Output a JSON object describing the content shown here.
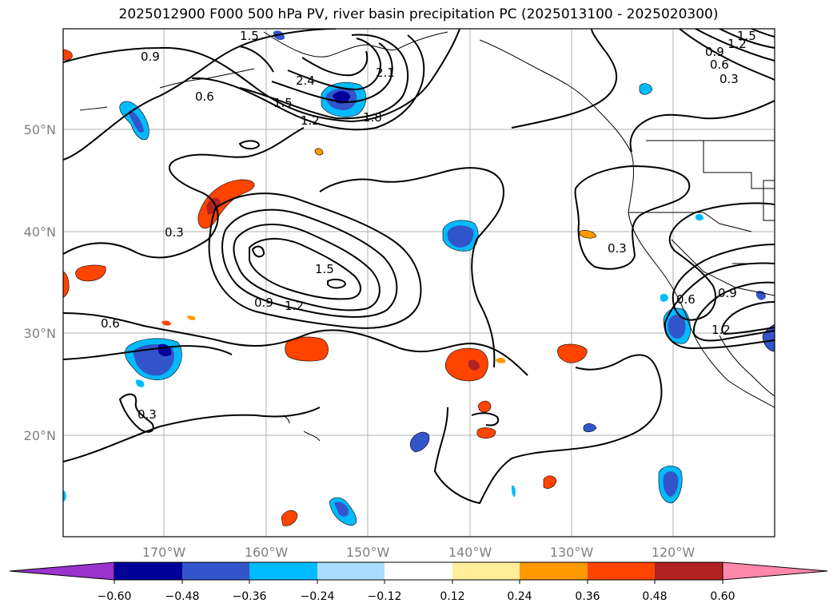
{
  "title": "2025012900 F000 500 hPa PV, river basin precipitation PC (2025013100 - 2025020300)",
  "lat_labels": [
    "50°N",
    "40°N",
    "30°N",
    "20°N"
  ],
  "lon_labels": [
    "170°W",
    "160°W",
    "150°W",
    "140°W",
    "130°W",
    "120°W"
  ],
  "contour_labels": [
    "0.3",
    "0.6",
    "0.9",
    "1.2",
    "1.5",
    "1.8",
    "2.1",
    "2.4"
  ],
  "colorbar": {
    "ticks": [
      "−0.60",
      "−0.48",
      "−0.36",
      "−0.24",
      "−0.12",
      "0.12",
      "0.24",
      "0.36",
      "0.48",
      "0.60"
    ],
    "colors": [
      "#9933cc",
      "#000099",
      "#3355cc",
      "#00bbff",
      "#aaddff",
      "#ffffff",
      "#ffee99",
      "#ff9900",
      "#ff4400",
      "#b22222",
      "#ff88aa"
    ]
  },
  "palette": {
    "grid": "#b0b0b0",
    "contour": "#000000",
    "coast": "#000000"
  }
}
